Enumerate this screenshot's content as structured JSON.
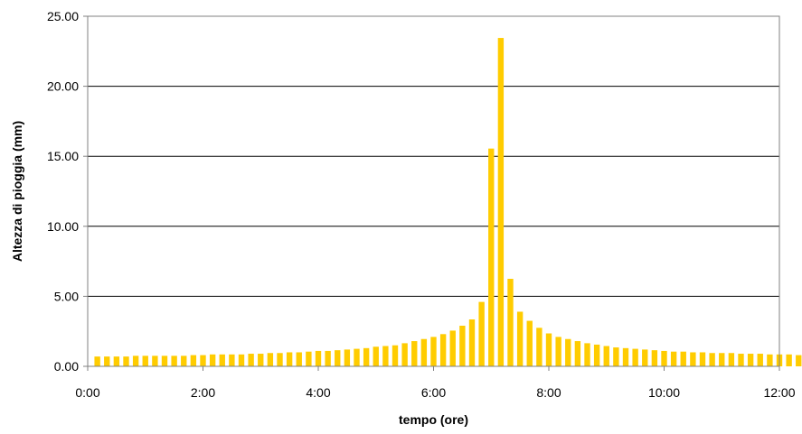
{
  "chart_data": {
    "type": "bar",
    "title": "",
    "xlabel": "tempo (ore)",
    "ylabel": "Altezza di pioggia (mm)",
    "ylim": [
      0,
      25
    ],
    "xlim_minutes": [
      0,
      720
    ],
    "grid": "horizontal major gridlines",
    "legend": "none",
    "bar_color": "#FFCC00",
    "y_ticks": [
      "0.00",
      "5.00",
      "10.00",
      "15.00",
      "20.00",
      "25.00"
    ],
    "x_ticks": [
      "0:00",
      "2:00",
      "4:00",
      "6:00",
      "8:00",
      "10:00",
      "12:00"
    ],
    "bar_interval_minutes": 10,
    "series": [
      {
        "values": [
          0.7,
          0.7,
          0.7,
          0.7,
          0.75,
          0.75,
          0.75,
          0.75,
          0.75,
          0.75,
          0.8,
          0.8,
          0.85,
          0.85,
          0.85,
          0.85,
          0.9,
          0.9,
          0.95,
          0.95,
          1.0,
          1.0,
          1.05,
          1.1,
          1.1,
          1.15,
          1.2,
          1.25,
          1.3,
          1.4,
          1.45,
          1.5,
          1.65,
          1.8,
          1.95,
          2.1,
          2.3,
          2.55,
          2.9,
          3.35,
          4.6,
          15.55,
          23.45,
          6.25,
          3.9,
          3.25,
          2.75,
          2.35,
          2.1,
          1.95,
          1.8,
          1.65,
          1.55,
          1.45,
          1.35,
          1.3,
          1.25,
          1.2,
          1.15,
          1.1,
          1.05,
          1.05,
          1.0,
          1.0,
          0.95,
          0.95,
          0.95,
          0.9,
          0.9,
          0.9,
          0.85,
          0.85,
          0.85,
          0.8,
          0.8,
          0.8,
          0.8,
          0.8,
          0.75,
          0.75,
          0.75,
          0.75,
          0.75,
          0.75,
          0.7,
          0.7,
          0.7
        ]
      }
    ]
  }
}
